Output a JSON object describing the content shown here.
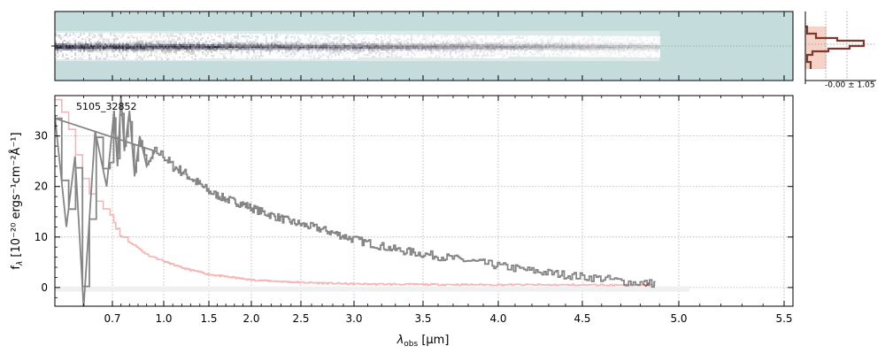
{
  "chart_data": [
    {
      "type": "heatmap",
      "panel": "2d-spectrum",
      "x_range_um": [
        0.6,
        5.52
      ],
      "x_scale": "reciprocal-warp",
      "trace_extent_um": [
        0.6,
        4.9
      ],
      "colors": {
        "background": "#c5dcdc",
        "trace_dark": "#1d1d33",
        "trace_mid": "#8fa1ae",
        "trace_light": "#ffffff"
      }
    },
    {
      "type": "line",
      "panel": "1d-spectrum",
      "annotation": "5105_32852",
      "xlabel_main": "λ",
      "xlabel_sub": "obs",
      "xlabel_unit": " [μm]",
      "ylabel_text": "f",
      "ylabel_sub": "λ",
      "ylabel_unit": " [10⁻²⁰ ergs⁻¹cm⁻²Å⁻¹]",
      "x_ticks": [
        {
          "v": 0.7,
          "label": "0.7"
        },
        {
          "v": 1.0,
          "label": "1.0"
        },
        {
          "v": 1.5,
          "label": "1.5"
        },
        {
          "v": 2.0,
          "label": "2.0"
        },
        {
          "v": 2.5,
          "label": "2.5"
        },
        {
          "v": 3.0,
          "label": "3.0"
        },
        {
          "v": 3.5,
          "label": "3.5"
        },
        {
          "v": 4.0,
          "label": "4.0"
        },
        {
          "v": 4.5,
          "label": "4.5"
        },
        {
          "v": 5.0,
          "label": "5.0"
        },
        {
          "v": 5.5,
          "label": "5.5"
        }
      ],
      "y_ticks": [
        0,
        10,
        20,
        30
      ],
      "ylim": [
        -3.7,
        38
      ],
      "grid": true,
      "series": [
        {
          "role": "flux",
          "color": "#858585",
          "points": [
            [
              0.6,
              34
            ],
            [
              0.62,
              12
            ],
            [
              0.635,
              26
            ],
            [
              0.65,
              -4
            ],
            [
              0.67,
              31
            ],
            [
              0.69,
              20
            ],
            [
              0.71,
              35
            ],
            [
              0.73,
              24
            ],
            [
              0.75,
              38
            ],
            [
              0.77,
              27
            ],
            [
              0.8,
              35
            ],
            [
              0.83,
              22
            ],
            [
              0.86,
              30
            ],
            [
              0.9,
              24
            ],
            [
              0.95,
              27
            ],
            [
              1.0,
              26
            ],
            [
              1.1,
              24
            ],
            [
              1.2,
              23
            ],
            [
              1.35,
              21
            ],
            [
              1.5,
              19
            ],
            [
              1.7,
              17.5
            ],
            [
              1.9,
              16.5
            ],
            [
              2.1,
              15
            ],
            [
              2.4,
              13
            ],
            [
              2.7,
              11.5
            ],
            [
              3.0,
              9.5
            ],
            [
              3.3,
              7.5
            ],
            [
              3.6,
              6.2
            ],
            [
              3.9,
              4.8
            ],
            [
              4.2,
              3.3
            ],
            [
              4.45,
              2.3
            ],
            [
              4.6,
              1.8
            ],
            [
              4.75,
              1.0
            ],
            [
              4.88,
              0.8
            ]
          ]
        },
        {
          "role": "model",
          "color": "#f4b6b6",
          "points": [
            [
              0.6,
              38
            ],
            [
              0.63,
              30
            ],
            [
              0.65,
              20
            ],
            [
              0.68,
              16
            ],
            [
              0.72,
              12
            ],
            [
              0.76,
              10
            ],
            [
              0.8,
              9
            ],
            [
              0.9,
              6.5
            ],
            [
              1.0,
              5.2
            ],
            [
              1.2,
              3.9
            ],
            [
              1.5,
              2.6
            ],
            [
              2.0,
              1.5
            ],
            [
              2.5,
              1.0
            ],
            [
              3.0,
              0.7
            ],
            [
              3.5,
              0.6
            ],
            [
              4.0,
              0.55
            ],
            [
              4.5,
              0.5
            ],
            [
              4.88,
              0.5
            ]
          ]
        }
      ],
      "error_band": {
        "x_range_um": [
          0.6,
          5.05
        ],
        "y_range": [
          -0.8,
          0.2
        ],
        "color": "#f0f0f0"
      },
      "end_marker": {
        "x": 4.83,
        "y": 0.3,
        "color": "#a05050"
      }
    },
    {
      "type": "histogram",
      "panel": "residual-histogram",
      "annotation": "-0.00 ± 1.05",
      "colors": {
        "fill": "#f7d2c8",
        "line": "#7a3b2e"
      }
    }
  ]
}
